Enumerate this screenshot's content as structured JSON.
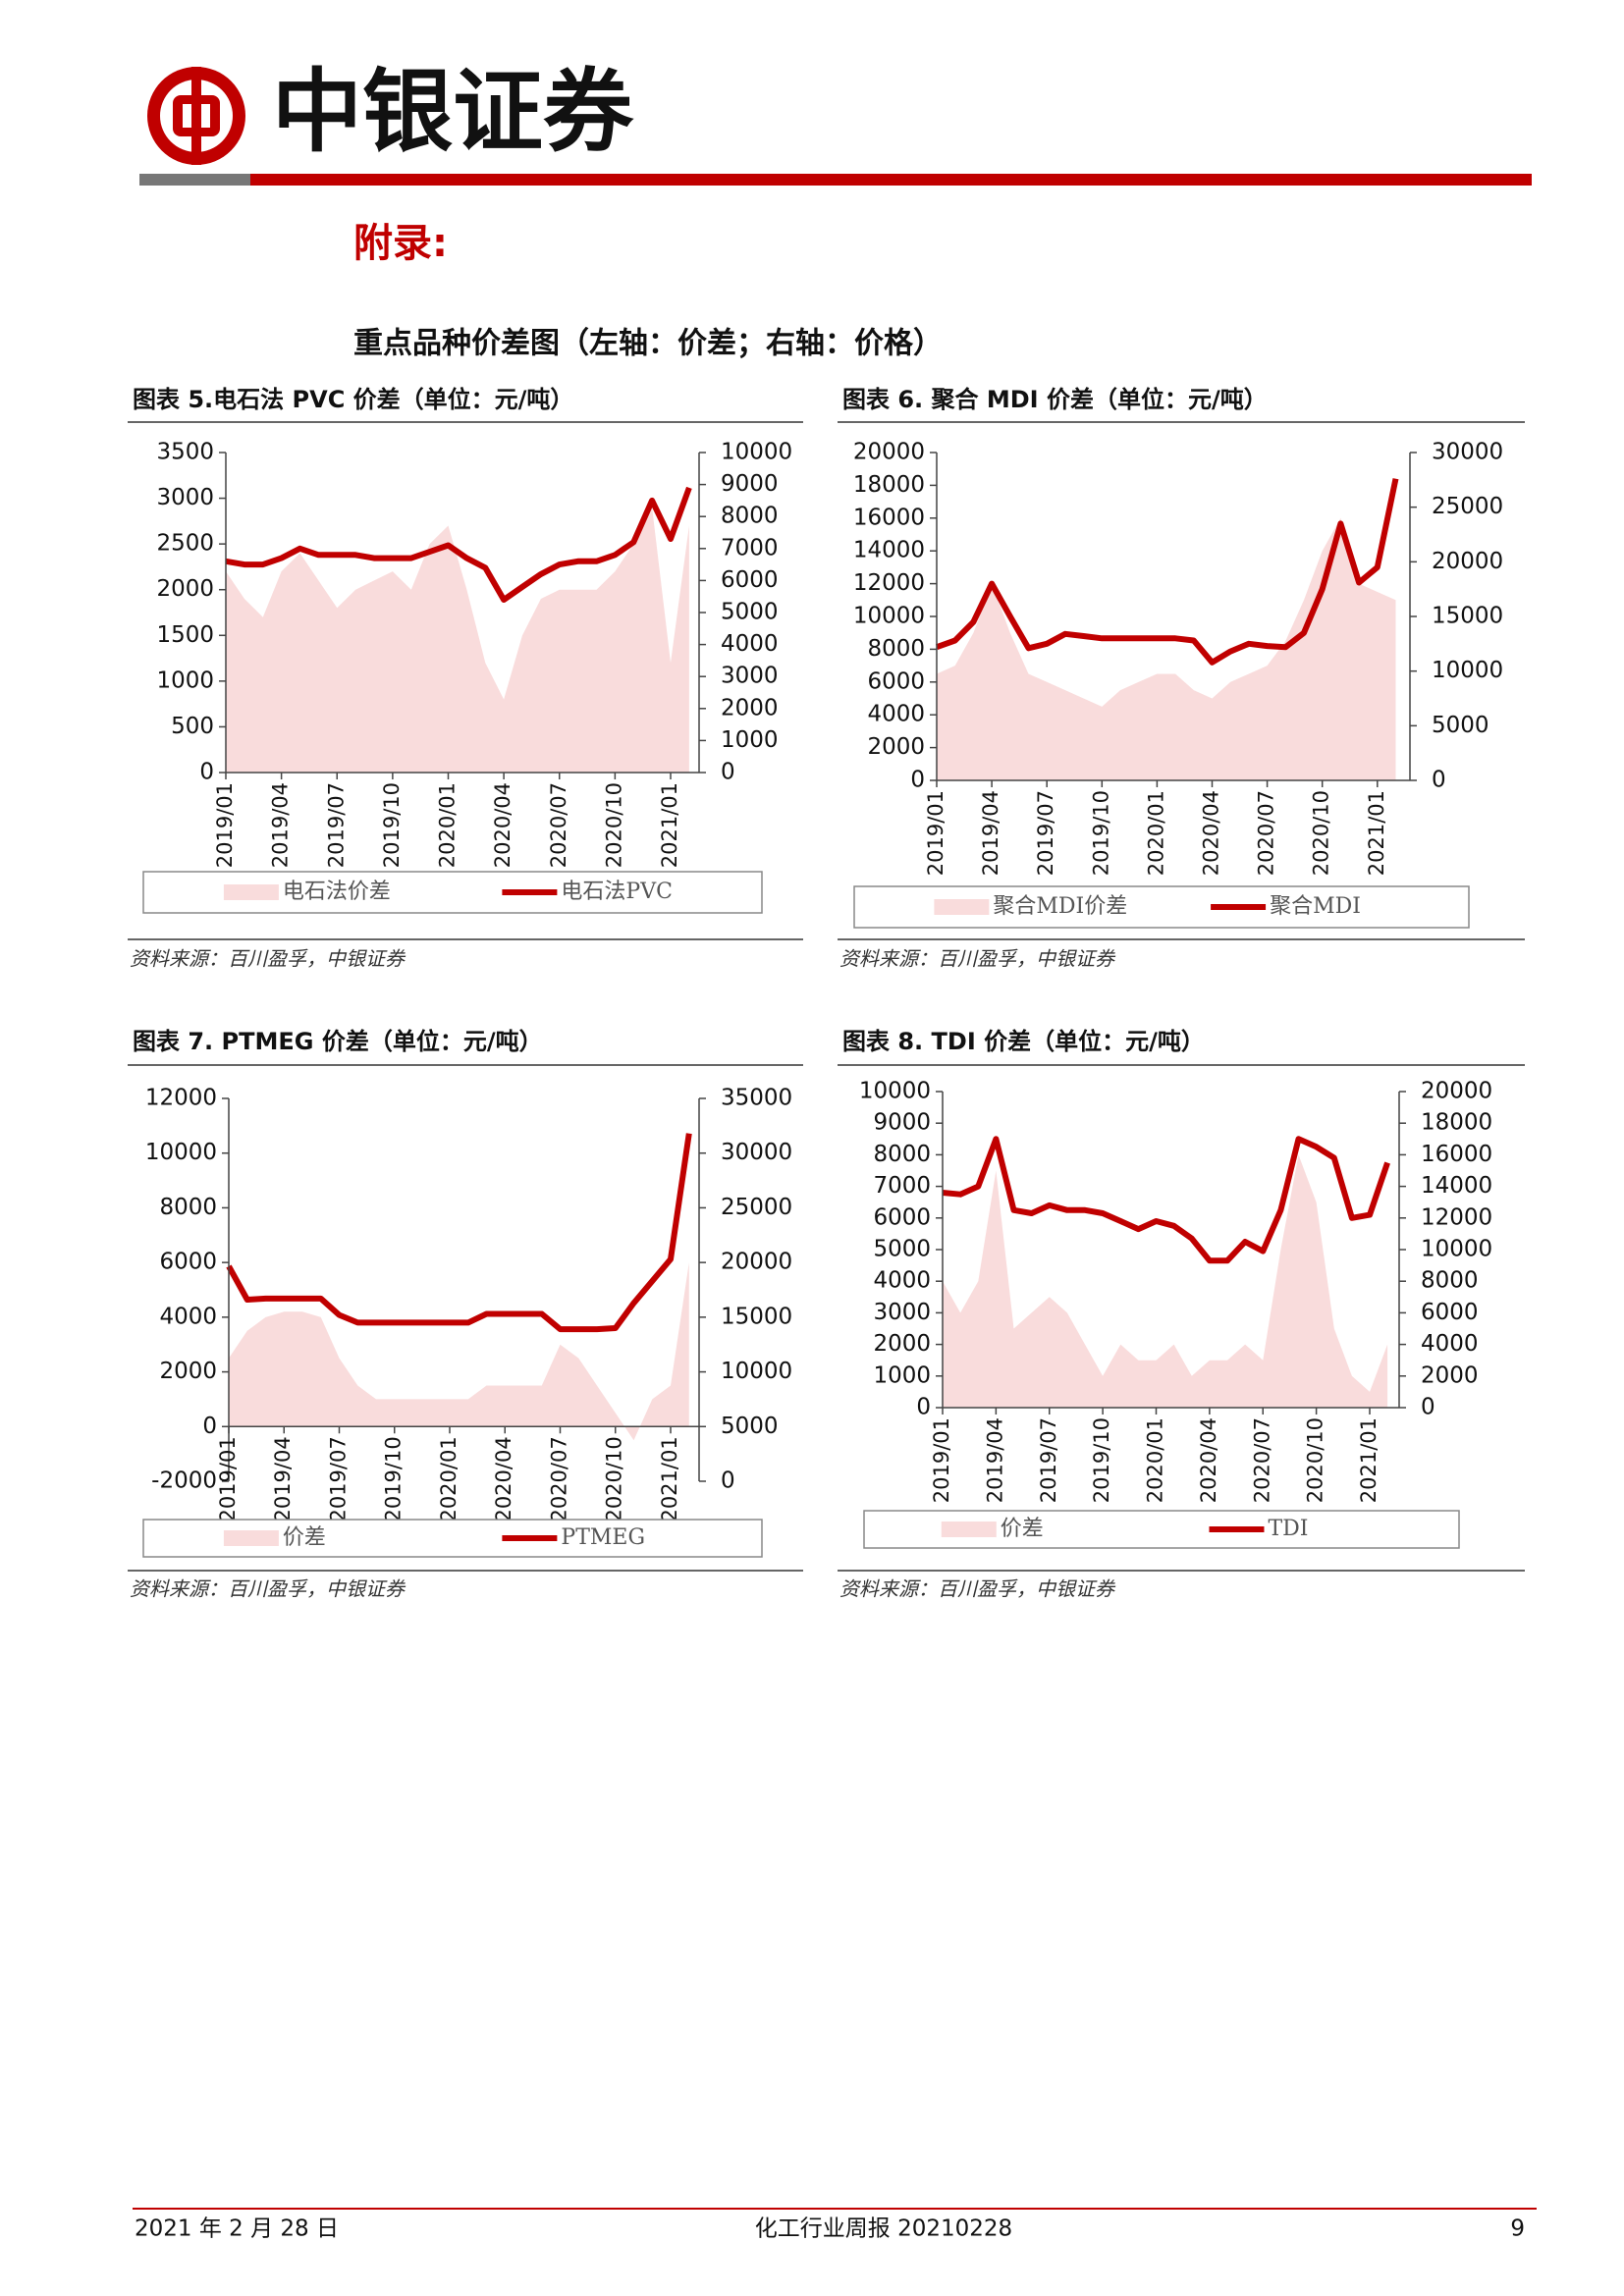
{
  "header": {
    "brand": "中银证券"
  },
  "appendix": "附录:",
  "heading": "重点品种价差图（左轴：价差；右轴：价格）",
  "chart_data": [
    {
      "type": "combo",
      "title": "图表 5.电石法 PVC 价差（单位：元/吨）",
      "source": "资料来源：百川盈孚，中银证券",
      "categories": [
        "2019/01",
        null,
        null,
        "2019/04",
        null,
        null,
        "2019/07",
        null,
        null,
        "2019/10",
        null,
        null,
        "2020/01",
        null,
        null,
        "2020/04",
        null,
        null,
        "2020/07",
        null,
        null,
        "2020/10",
        null,
        null,
        "2021/01",
        null
      ],
      "series": [
        {
          "name": "电石法价差",
          "type": "area",
          "color": "#f9dcdc",
          "values": [
            2200,
            1900,
            1700,
            2200,
            2400,
            2100,
            1800,
            2000,
            2100,
            2200,
            2000,
            2500,
            2700,
            2000,
            1200,
            800,
            1500,
            1900,
            2000,
            2000,
            2000,
            2200,
            2500,
            2900,
            1200,
            2700
          ]
        },
        {
          "name": "电石法PVC",
          "type": "line",
          "axis": "y2",
          "color": "#c00000",
          "values": [
            6600,
            6500,
            6500,
            6700,
            7000,
            6800,
            6800,
            6800,
            6700,
            6700,
            6700,
            6900,
            7100,
            6700,
            6400,
            5400,
            5800,
            6200,
            6500,
            6600,
            6600,
            6800,
            7200,
            8500,
            7300,
            8900
          ]
        }
      ],
      "ylim": [
        0,
        3500
      ],
      "yticks": [
        0,
        500,
        1000,
        1500,
        2000,
        2500,
        3000,
        3500
      ],
      "y2lim": [
        0,
        10000
      ],
      "y2ticks": [
        0,
        1000,
        2000,
        3000,
        4000,
        5000,
        6000,
        7000,
        8000,
        9000,
        10000
      ]
    },
    {
      "type": "combo",
      "title": "图表 6. 聚合 MDI 价差（单位：元/吨）",
      "source": "资料来源：百川盈孚，中银证券",
      "categories": [
        "2019/01",
        null,
        null,
        "2019/04",
        null,
        null,
        "2019/07",
        null,
        null,
        "2019/10",
        null,
        null,
        "2020/01",
        null,
        null,
        "2020/04",
        null,
        null,
        "2020/07",
        null,
        null,
        "2020/10",
        null,
        null,
        "2021/01",
        null
      ],
      "series": [
        {
          "name": "聚合MDI价差",
          "type": "area",
          "color": "#f9dcdc",
          "values": [
            6500,
            7000,
            9000,
            12000,
            9000,
            6500,
            6000,
            5500,
            5000,
            4500,
            5500,
            6000,
            6500,
            6500,
            5500,
            5000,
            6000,
            6500,
            7000,
            8500,
            11000,
            14000,
            16000,
            12000,
            11500,
            11000
          ]
        },
        {
          "name": "聚合MDI",
          "type": "line",
          "axis": "y2",
          "color": "#c00000",
          "values": [
            12200,
            12800,
            14500,
            18000,
            15000,
            12100,
            12500,
            13400,
            13200,
            13000,
            13000,
            13000,
            13000,
            13000,
            12800,
            10800,
            11800,
            12500,
            12300,
            12200,
            13500,
            17500,
            23500,
            18100,
            19500,
            27600
          ]
        }
      ],
      "ylim": [
        0,
        20000
      ],
      "yticks": [
        0,
        2000,
        4000,
        6000,
        8000,
        10000,
        12000,
        14000,
        16000,
        18000,
        20000
      ],
      "y2lim": [
        0,
        30000
      ],
      "y2ticks": [
        0,
        5000,
        10000,
        15000,
        20000,
        25000,
        30000
      ]
    },
    {
      "type": "combo",
      "title": "图表 7. PTMEG 价差（单位：元/吨）",
      "source": "资料来源：百川盈孚，中银证券",
      "categories": [
        "2019/01",
        null,
        null,
        "2019/04",
        null,
        null,
        "2019/07",
        null,
        null,
        "2019/10",
        null,
        null,
        "2020/01",
        null,
        null,
        "2020/04",
        null,
        null,
        "2020/07",
        null,
        null,
        "2020/10",
        null,
        null,
        "2021/01",
        null
      ],
      "series": [
        {
          "name": "价差",
          "type": "area",
          "color": "#f9dcdc",
          "values": [
            2500,
            3500,
            4000,
            4200,
            4200,
            4000,
            2500,
            1500,
            1000,
            1000,
            1000,
            1000,
            1000,
            1000,
            1500,
            1500,
            1500,
            1500,
            3000,
            2500,
            1500,
            500,
            -500,
            1000,
            1500,
            6000
          ]
        },
        {
          "name": "PTMEG",
          "type": "line",
          "axis": "y2",
          "color": "#c00000",
          "values": [
            19650,
            16600,
            16700,
            16700,
            16700,
            16700,
            15200,
            14500,
            14500,
            14500,
            14500,
            14500,
            14500,
            14500,
            15300,
            15300,
            15300,
            15300,
            13900,
            13900,
            13900,
            14000,
            16300,
            18300,
            20300,
            31800
          ]
        }
      ],
      "ylim": [
        -2000,
        12000
      ],
      "yticks": [
        -2000,
        0,
        2000,
        4000,
        6000,
        8000,
        10000,
        12000
      ],
      "y2lim": [
        0,
        35000
      ],
      "y2ticks": [
        0,
        5000,
        10000,
        15000,
        20000,
        25000,
        30000,
        35000
      ]
    },
    {
      "type": "combo",
      "title": "图表 8. TDI 价差（单位：元/吨）",
      "source": "资料来源：百川盈孚，中银证券",
      "categories": [
        "2019/01",
        null,
        null,
        "2019/04",
        null,
        null,
        "2019/07",
        null,
        null,
        "2019/10",
        null,
        null,
        "2020/01",
        null,
        null,
        "2020/04",
        null,
        null,
        "2020/07",
        null,
        null,
        "2020/10",
        null,
        null,
        "2021/01",
        null
      ],
      "series": [
        {
          "name": "价差",
          "type": "area",
          "color": "#f9dcdc",
          "values": [
            4000,
            3000,
            4000,
            7500,
            2500,
            3000,
            3500,
            3000,
            2000,
            1000,
            2000,
            1500,
            1500,
            2000,
            1000,
            1500,
            1500,
            2000,
            1500,
            5000,
            8000,
            6500,
            2500,
            1000,
            500,
            2000
          ]
        },
        {
          "name": "TDI",
          "type": "line",
          "axis": "y2",
          "color": "#c00000",
          "values": [
            13600,
            13500,
            14000,
            17000,
            12500,
            12300,
            12800,
            12500,
            12500,
            12300,
            11800,
            11300,
            11800,
            11500,
            10700,
            9300,
            9300,
            10500,
            9900,
            12500,
            17000,
            16500,
            15800,
            12000,
            12200,
            15500
          ]
        }
      ],
      "ylim": [
        0,
        10000
      ],
      "yticks": [
        0,
        1000,
        2000,
        3000,
        4000,
        5000,
        6000,
        7000,
        8000,
        9000,
        10000
      ],
      "y2lim": [
        0,
        20000
      ],
      "y2ticks": [
        0,
        2000,
        4000,
        6000,
        8000,
        10000,
        12000,
        14000,
        16000,
        18000,
        20000
      ]
    }
  ],
  "footer": {
    "date": "2021 年 2 月 28 日",
    "report": "化工行业周报 20210228",
    "page": "9"
  }
}
